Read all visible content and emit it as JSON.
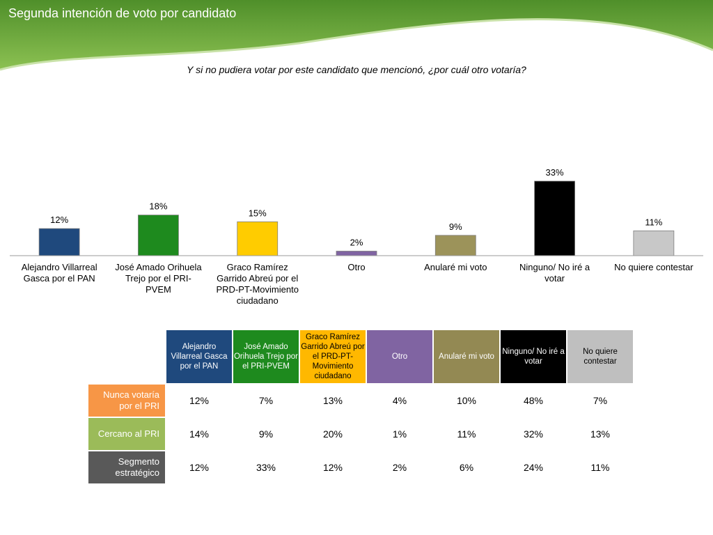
{
  "slide": {
    "title": "Segunda intención de voto por candidato",
    "question": "Y si no pudiera votar por este candidato que mencionó, ¿por cuál otro votaría?",
    "banner_color": "#6aab3a"
  },
  "chart_data": {
    "type": "bar",
    "categories": [
      "Alejandro Villarreal Gasca por el PAN",
      "José Amado Orihuela Trejo por el PRI-PVEM",
      "Graco Ramírez Garrido Abreú por el PRD-PT-Movimiento ciudadano",
      "Otro",
      "Anularé mi voto",
      "Ninguno/ No iré a votar",
      "No quiere contestar"
    ],
    "category_lines": [
      [
        "Alejandro Villarreal",
        "Gasca por el PAN"
      ],
      [
        "José Amado Orihuela",
        "Trejo por el PRI-",
        "PVEM"
      ],
      [
        "Graco Ramírez",
        "Garrido Abreú por el",
        "PRD-PT-Movimiento",
        "ciudadano"
      ],
      [
        "Otro"
      ],
      [
        "Anularé mi voto"
      ],
      [
        "Ninguno/ No iré a",
        "votar"
      ],
      [
        "No quiere contestar"
      ]
    ],
    "values": [
      12,
      18,
      15,
      2,
      9,
      33,
      11
    ],
    "data_labels": [
      "12%",
      "18%",
      "15%",
      "2%",
      "9%",
      "33%",
      "11%"
    ],
    "colors": [
      "#1f497d",
      "#1e8a1e",
      "#ffcc00",
      "#8064a2",
      "#9c935a",
      "#000000",
      "#c8c8c8"
    ],
    "ylim": [
      0,
      33
    ],
    "grid": false,
    "legend": "none"
  },
  "segment_table": {
    "headers": [
      "Alejandro Villarreal Gasca por el PAN",
      "José Amado Orihuela Trejo por el PRI-PVEM",
      "Graco Ramírez Garrido Abreú por el PRD-PT-Movimiento ciudadano",
      "Otro",
      "Anularé mi voto",
      "Ninguno/ No iré a votar",
      "No quiere contestar"
    ],
    "header_colors": [
      "#1f497d",
      "#1e8a1e",
      "#ffb800",
      "#8064a2",
      "#938953",
      "#000000",
      "#bfbfbf"
    ],
    "rows": [
      {
        "label": "Nunca votaría por el PRI",
        "color": "#f79646",
        "values": [
          "12%",
          "7%",
          "13%",
          "4%",
          "10%",
          "48%",
          "7%"
        ]
      },
      {
        "label": "Cercano al PRI",
        "color": "#9bbb59",
        "values": [
          "14%",
          "9%",
          "20%",
          "1%",
          "11%",
          "32%",
          "13%"
        ]
      },
      {
        "label": "Segmento estratégico",
        "color": "#595959",
        "values": [
          "12%",
          "33%",
          "12%",
          "2%",
          "6%",
          "24%",
          "11%"
        ]
      }
    ]
  }
}
